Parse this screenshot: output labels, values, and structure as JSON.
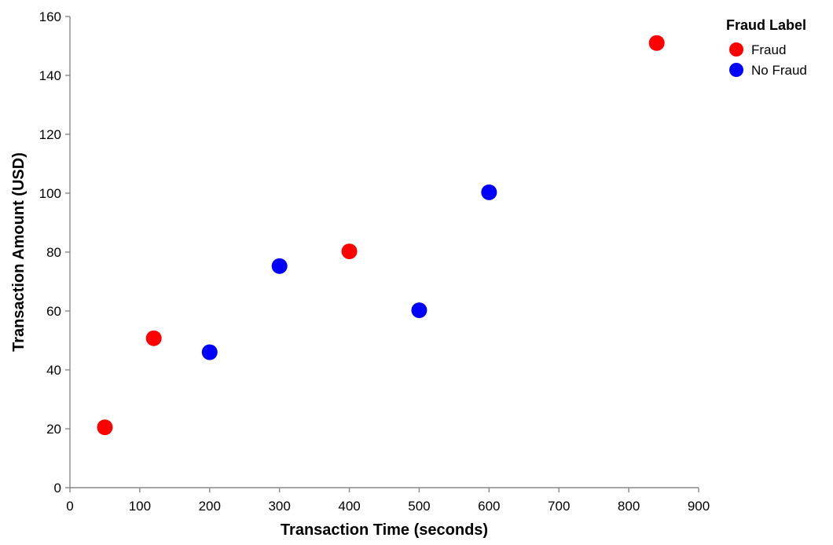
{
  "chart_data": {
    "type": "scatter",
    "title": "",
    "xlabel": "Transaction Time (seconds)",
    "ylabel": "Transaction Amount (USD)",
    "xlim": [
      0,
      900
    ],
    "ylim": [
      0,
      160
    ],
    "x_ticks": [
      0,
      100,
      200,
      300,
      400,
      500,
      600,
      700,
      800,
      900
    ],
    "y_ticks": [
      0,
      20,
      40,
      60,
      80,
      100,
      120,
      140,
      160
    ],
    "grid": false,
    "legend": {
      "title": "Fraud Label",
      "placement": "top-right"
    },
    "series": [
      {
        "name": "Fraud",
        "color": "#ff0000",
        "points": [
          {
            "x": 50,
            "y": 20.5
          },
          {
            "x": 120,
            "y": 50.75
          },
          {
            "x": 400,
            "y": 80.25
          },
          {
            "x": 840,
            "y": 151
          }
        ]
      },
      {
        "name": "No Fraud",
        "color": "#0000ff",
        "points": [
          {
            "x": 200,
            "y": 46
          },
          {
            "x": 300,
            "y": 75.25
          },
          {
            "x": 500,
            "y": 60.25
          },
          {
            "x": 600,
            "y": 100.3
          }
        ]
      }
    ]
  }
}
